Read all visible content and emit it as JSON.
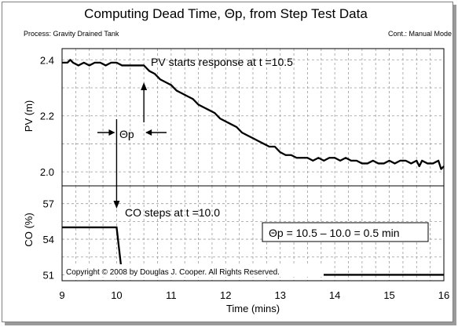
{
  "header": {
    "title": "Computing Dead Time, Θp, from Step Test Data",
    "process": "Process: Gravity Drained Tank",
    "control": "Cont.: Manual Mode"
  },
  "annotations": {
    "pv_start": "PV starts response at  t =10.5",
    "co_step": "CO steps at  t =10.0",
    "theta": "Θp",
    "calc": "Θp = 10.5 – 10.0 = 0.5 min",
    "copyright": "Copyright © 2008 by Douglas J. Cooper. All Rights Reserved."
  },
  "chart_data": [
    {
      "type": "line",
      "ylabel": "PV (m)",
      "ylim": [
        1.95,
        2.44
      ],
      "yticks": [
        "2.4",
        "2.2",
        "2.0"
      ],
      "yticks_values": [
        2.4,
        2.2,
        2.0
      ],
      "xlim": [
        9,
        16
      ],
      "series": [
        {
          "x": [
            9.0,
            9.1,
            9.15,
            9.2,
            9.3,
            9.4,
            9.5,
            9.6,
            9.7,
            9.8,
            9.9,
            10.0,
            10.1,
            10.2,
            10.3,
            10.4,
            10.5,
            10.55,
            10.6,
            10.7,
            10.8,
            10.9,
            11.0,
            11.1,
            11.2,
            11.3,
            11.4,
            11.5,
            11.6,
            11.7,
            11.8,
            11.9,
            12.0,
            12.1,
            12.2,
            12.3,
            12.4,
            12.5,
            12.6,
            12.7,
            12.8,
            12.9,
            13.0,
            13.1,
            13.2,
            13.3,
            13.4,
            13.5,
            13.6,
            13.7,
            13.8,
            13.9,
            14.0,
            14.1,
            14.2,
            14.3,
            14.4,
            14.5,
            14.6,
            14.7,
            14.8,
            14.9,
            15.0,
            15.1,
            15.2,
            15.3,
            15.4,
            15.5,
            15.55,
            15.6,
            15.7,
            15.8,
            15.9,
            15.95,
            16.0
          ],
          "values": [
            2.39,
            2.39,
            2.4,
            2.39,
            2.38,
            2.39,
            2.38,
            2.39,
            2.39,
            2.38,
            2.39,
            2.39,
            2.38,
            2.38,
            2.38,
            2.38,
            2.38,
            2.37,
            2.36,
            2.35,
            2.33,
            2.32,
            2.31,
            2.29,
            2.28,
            2.27,
            2.26,
            2.24,
            2.23,
            2.22,
            2.21,
            2.19,
            2.18,
            2.17,
            2.16,
            2.14,
            2.13,
            2.12,
            2.11,
            2.1,
            2.09,
            2.09,
            2.07,
            2.06,
            2.06,
            2.05,
            2.05,
            2.05,
            2.04,
            2.05,
            2.04,
            2.05,
            2.05,
            2.04,
            2.05,
            2.04,
            2.04,
            2.03,
            2.03,
            2.04,
            2.03,
            2.03,
            2.04,
            2.03,
            2.04,
            2.04,
            2.03,
            2.04,
            2.02,
            2.04,
            2.03,
            2.03,
            2.04,
            2.01,
            2.02
          ]
        }
      ]
    },
    {
      "type": "line",
      "ylabel": "CO (%)",
      "xlabel": "Time (mins)",
      "ylim": [
        50.5,
        58.5
      ],
      "yticks": [
        "57",
        "54",
        "51"
      ],
      "yticks_values": [
        57,
        54,
        51
      ],
      "xlim": [
        9,
        16
      ],
      "xticks": [
        "9",
        "10",
        "11",
        "12",
        "13",
        "14",
        "15",
        "16"
      ],
      "xticks_values": [
        9,
        10,
        11,
        12,
        13,
        14,
        15,
        16
      ],
      "series": [
        {
          "x": [
            9.0,
            10.0,
            10.05,
            10.1,
            16.0
          ],
          "values": [
            55.0,
            55.0,
            53.0,
            51.0,
            51.0
          ]
        }
      ]
    }
  ]
}
